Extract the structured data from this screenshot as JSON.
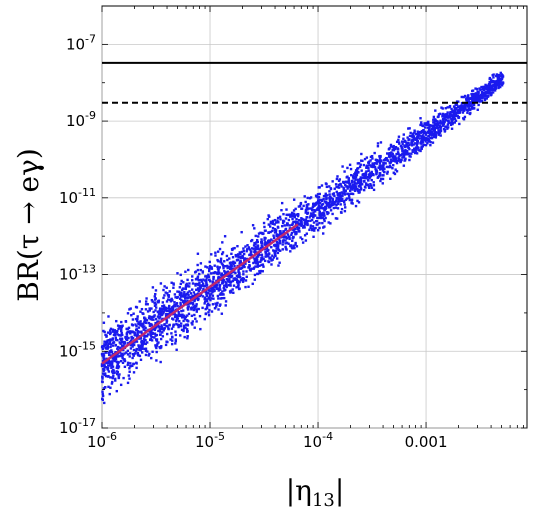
{
  "chart_data": {
    "type": "scatter",
    "x_scale": "log",
    "y_scale": "log",
    "xlim": [
      1e-06,
      0.0086
    ],
    "ylim": [
      1e-17,
      1e-06
    ],
    "grid": true,
    "xlabel": "|η13|",
    "xlabel_main": "|η",
    "xlabel_sub": "13",
    "xlabel_close": "|",
    "ylabel": "BR(τ → eγ)",
    "x_ticks": [
      {
        "value": 1e-06,
        "base": "10",
        "exp": "-6"
      },
      {
        "value": 1e-05,
        "base": "10",
        "exp": "-5"
      },
      {
        "value": 0.0001,
        "base": "10",
        "exp": "-4"
      },
      {
        "value": 0.001,
        "base": "0.001",
        "exp": ""
      }
    ],
    "y_ticks": [
      {
        "value": 1e-17,
        "base": "10",
        "exp": "-17"
      },
      {
        "value": 1e-15,
        "base": "10",
        "exp": "-15"
      },
      {
        "value": 1e-13,
        "base": "10",
        "exp": "-13"
      },
      {
        "value": 1e-11,
        "base": "10",
        "exp": "-11"
      },
      {
        "value": 1e-09,
        "base": "10",
        "exp": "-9"
      },
      {
        "value": 1e-07,
        "base": "10",
        "exp": "-7"
      }
    ],
    "reference_lines": [
      {
        "y": 3.3e-08,
        "style": "solid",
        "color": "#000000"
      },
      {
        "y": 3e-09,
        "style": "dashed",
        "color": "#000000"
      }
    ],
    "scatter": {
      "color": "#1a1aee",
      "relation": "BR ≈ 4.8e-4 × |η13|^2",
      "coefficient": 0.00048,
      "power": 2,
      "x_range": [
        1e-06,
        0.0052
      ],
      "point_count": 3000
    },
    "fit_line": {
      "color": "#c0286e",
      "x_range": [
        1e-06,
        6.5e-05
      ],
      "coefficient": 0.00048,
      "power": 2
    }
  }
}
